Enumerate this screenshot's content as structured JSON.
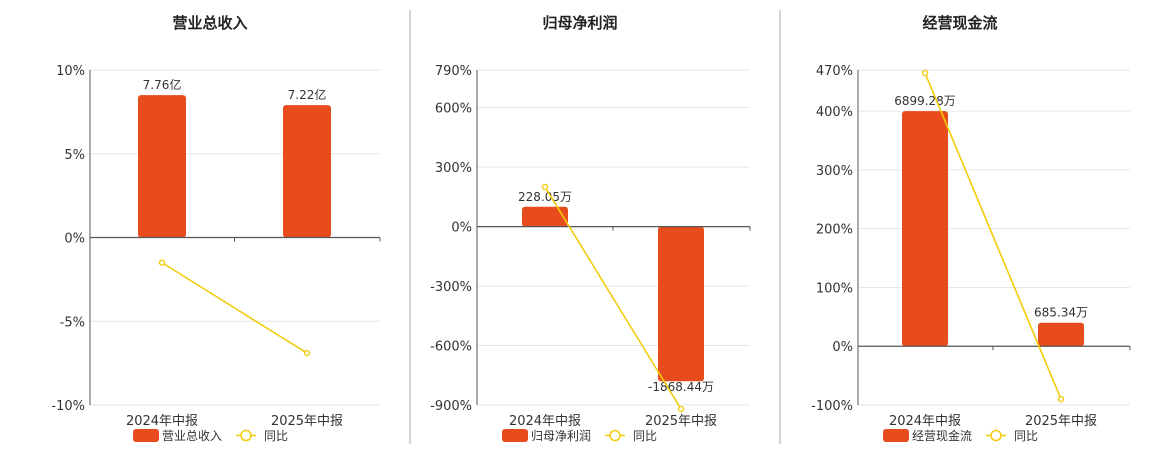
{
  "colors": {
    "bar": "#E84C1C",
    "line": "#F2CC0C",
    "axis": "#555555",
    "grid": "#E6E6E6",
    "divider": "#AAAAAA"
  },
  "chart_data": [
    {
      "type": "bar",
      "title": "营业总收入",
      "categories": [
        "2024年中报",
        "2025年中报"
      ],
      "y_tick_labels": [
        "10%",
        "5%",
        "0%",
        "-5%",
        "-10%"
      ],
      "ylim": [
        -10,
        10
      ],
      "series": [
        {
          "name": "营业总收入",
          "kind": "bar",
          "values": [
            8.5,
            7.9
          ],
          "labels": [
            "7.76亿",
            "7.22亿"
          ]
        },
        {
          "name": "同比",
          "kind": "line",
          "values": [
            -1.5,
            -6.9
          ]
        }
      ],
      "grid": true,
      "legend": "bottom"
    },
    {
      "type": "bar",
      "title": "归母净利润",
      "categories": [
        "2024年中报",
        "2025年中报"
      ],
      "y_tick_labels": [
        "790%",
        "600%",
        "300%",
        "0%",
        "-300%",
        "-600%",
        "-900%"
      ],
      "ylim": [
        -900,
        790
      ],
      "series": [
        {
          "name": "归母净利润",
          "kind": "bar",
          "values": [
            100,
            -780
          ],
          "labels": [
            "228.05万",
            "-1868.44万"
          ]
        },
        {
          "name": "同比",
          "kind": "line",
          "values": [
            200,
            -920
          ]
        }
      ],
      "grid": true,
      "legend": "bottom"
    },
    {
      "type": "bar",
      "title": "经营现金流",
      "categories": [
        "2024年中报",
        "2025年中报"
      ],
      "y_tick_labels": [
        "470%",
        "400%",
        "300%",
        "200%",
        "100%",
        "0%",
        "-100%"
      ],
      "ylim": [
        -100,
        470
      ],
      "series": [
        {
          "name": "经营现金流",
          "kind": "bar",
          "values": [
            400,
            40
          ],
          "labels": [
            "6899.28万",
            "685.34万"
          ]
        },
        {
          "name": "同比",
          "kind": "line",
          "values": [
            465,
            -90
          ]
        }
      ],
      "grid": true,
      "legend": "bottom"
    }
  ]
}
